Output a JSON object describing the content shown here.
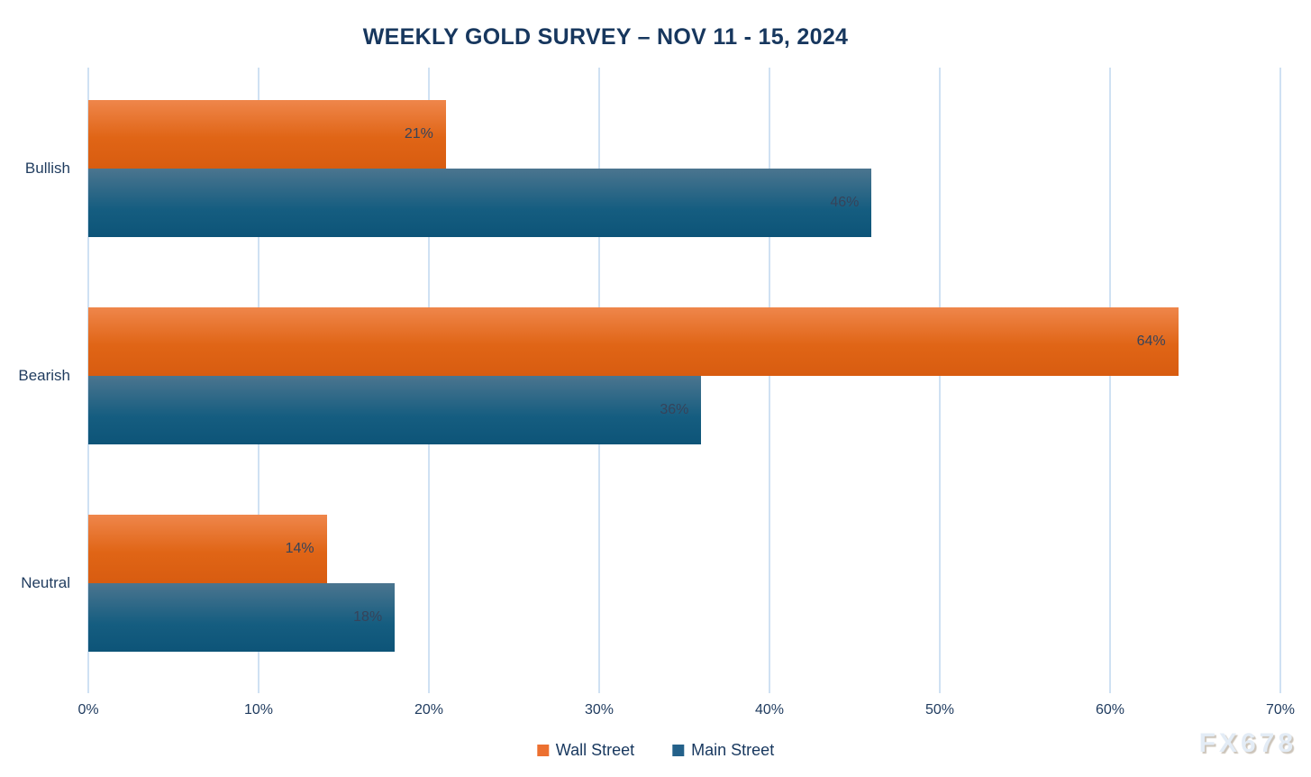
{
  "chart": {
    "title": "WEEKLY GOLD SURVEY – NOV 11 - 15, 2024"
  },
  "watermark": "FX678",
  "legend": [
    {
      "label": "Wall Street",
      "color": "#ec7030"
    },
    {
      "label": "Main Street",
      "color": "#24618a"
    }
  ],
  "chart_data": {
    "type": "bar",
    "orientation": "horizontal",
    "title": "WEEKLY GOLD SURVEY – NOV 11 - 15, 2024",
    "categories": [
      "Bullish",
      "Bearish",
      "Neutral"
    ],
    "series": [
      {
        "name": "Wall Street",
        "values": [
          21,
          64,
          14
        ],
        "labels": [
          "21%",
          "64%",
          "14%"
        ],
        "color": "#ec7030"
      },
      {
        "name": "Main Street",
        "values": [
          46,
          36,
          18
        ],
        "labels": [
          "46%",
          "36%",
          "18%"
        ],
        "color": "#24618a"
      }
    ],
    "xlabel": "",
    "ylabel": "",
    "xlim": [
      0,
      70
    ],
    "x_ticks": [
      {
        "label": "0%",
        "value": 0
      },
      {
        "label": "10%",
        "value": 10
      },
      {
        "label": "20%",
        "value": 20
      },
      {
        "label": "30%",
        "value": 30
      },
      {
        "label": "40%",
        "value": 40
      },
      {
        "label": "50%",
        "value": 50
      },
      {
        "label": "60%",
        "value": 60
      },
      {
        "label": "70%",
        "value": 70
      }
    ],
    "grid": true,
    "legend_position": "bottom"
  },
  "colors": {
    "title_text": "#17375e",
    "axis_text": "#1e3a5e",
    "value_label_text": "#36435a",
    "gridline": "#cfe1f3",
    "background": "#ffffff"
  }
}
